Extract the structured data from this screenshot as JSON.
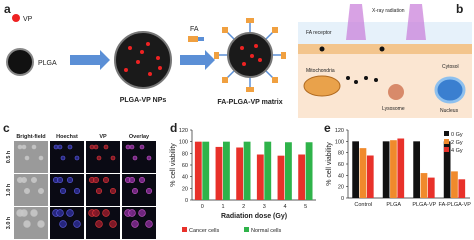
{
  "panels": {
    "a": {
      "label": "a",
      "vp": "VP",
      "plga": "PLGA",
      "nps": "PLGA-VP NPs",
      "fa": "FA",
      "matrix": "FA-PLGA-VP matrix"
    },
    "b": {
      "label": "b",
      "receptor": "FA receptor",
      "xray": "X-ray radiation",
      "mito": "Mitochondria",
      "cytosol": "Cytosol",
      "lyso": "Lysosome",
      "nucleus": "Nucleus"
    },
    "c": {
      "label": "c",
      "columns": [
        "Bright-field",
        "Hoechst",
        "VP",
        "Overlay"
      ],
      "rows": [
        "0.5 h",
        "1.0 h",
        "3.0 h"
      ]
    }
  },
  "chart_data": [
    {
      "type": "bar",
      "label": "d",
      "y_label": "% cell viability",
      "x_label": "Radiation dose (Gy)",
      "categories": [
        "0",
        "1",
        "2",
        "3",
        "4",
        "5"
      ],
      "series": [
        {
          "name": "Cancer cells",
          "color": "#e8312a",
          "values": [
            100,
            91,
            90,
            78,
            76,
            78
          ]
        },
        {
          "name": "Normal cells",
          "color": "#2fb34a",
          "values": [
            100,
            100,
            100,
            100,
            99,
            99
          ]
        }
      ],
      "ylim": [
        0,
        120
      ],
      "yticks": [
        0,
        20,
        40,
        60,
        80,
        100,
        120
      ],
      "legend": "bottom"
    },
    {
      "type": "bar",
      "label": "e",
      "y_label": "% cell viability",
      "categories": [
        "Control",
        "PLGA",
        "PLGA-VP",
        "FA-PLGA-VP"
      ],
      "series": [
        {
          "name": "0 Gy",
          "color": "#111111",
          "values": [
            100,
            100,
            100,
            100
          ]
        },
        {
          "name": "2 Gy",
          "color": "#f08a2c",
          "values": [
            88,
            102,
            44,
            47
          ]
        },
        {
          "name": "4 Gy",
          "color": "#e8312a",
          "values": [
            75,
            105,
            36,
            33
          ]
        }
      ],
      "ylim": [
        0,
        120
      ],
      "yticks": [
        0,
        20,
        40,
        60,
        80,
        100,
        120
      ],
      "legend": "top-right"
    }
  ]
}
